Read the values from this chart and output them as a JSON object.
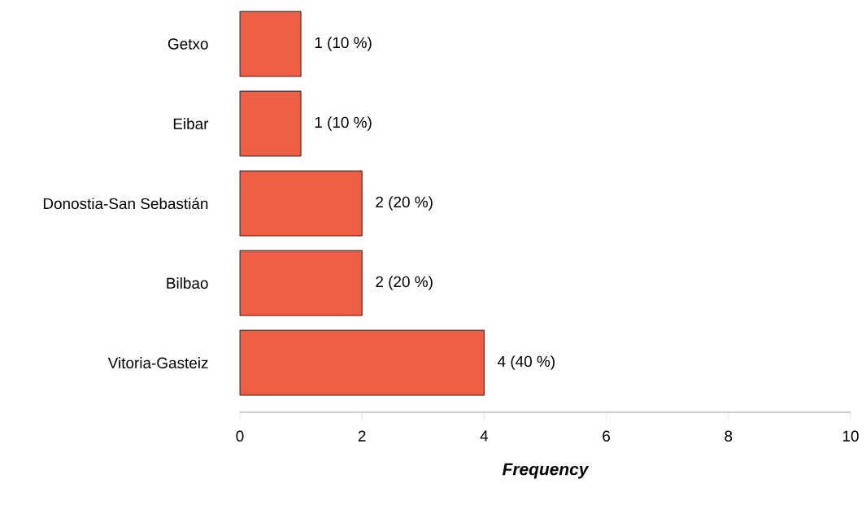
{
  "chart_data": {
    "type": "bar",
    "orientation": "horizontal",
    "xlabel": "Frequency",
    "categories": [
      "Getxo",
      "Eibar",
      "Donostia-San Sebastián",
      "Bilbao",
      "Vitoria-Gasteiz"
    ],
    "values": [
      1,
      1,
      2,
      2,
      4
    ],
    "value_labels": [
      "1 (10 %)",
      "1 (10 %)",
      "2 (20 %)",
      "2 (20 %)",
      "4 (40 %)"
    ],
    "color": "#ee5e45",
    "xlim": [
      0,
      10
    ],
    "xticks": [
      0,
      2,
      4,
      6,
      8,
      10
    ]
  }
}
